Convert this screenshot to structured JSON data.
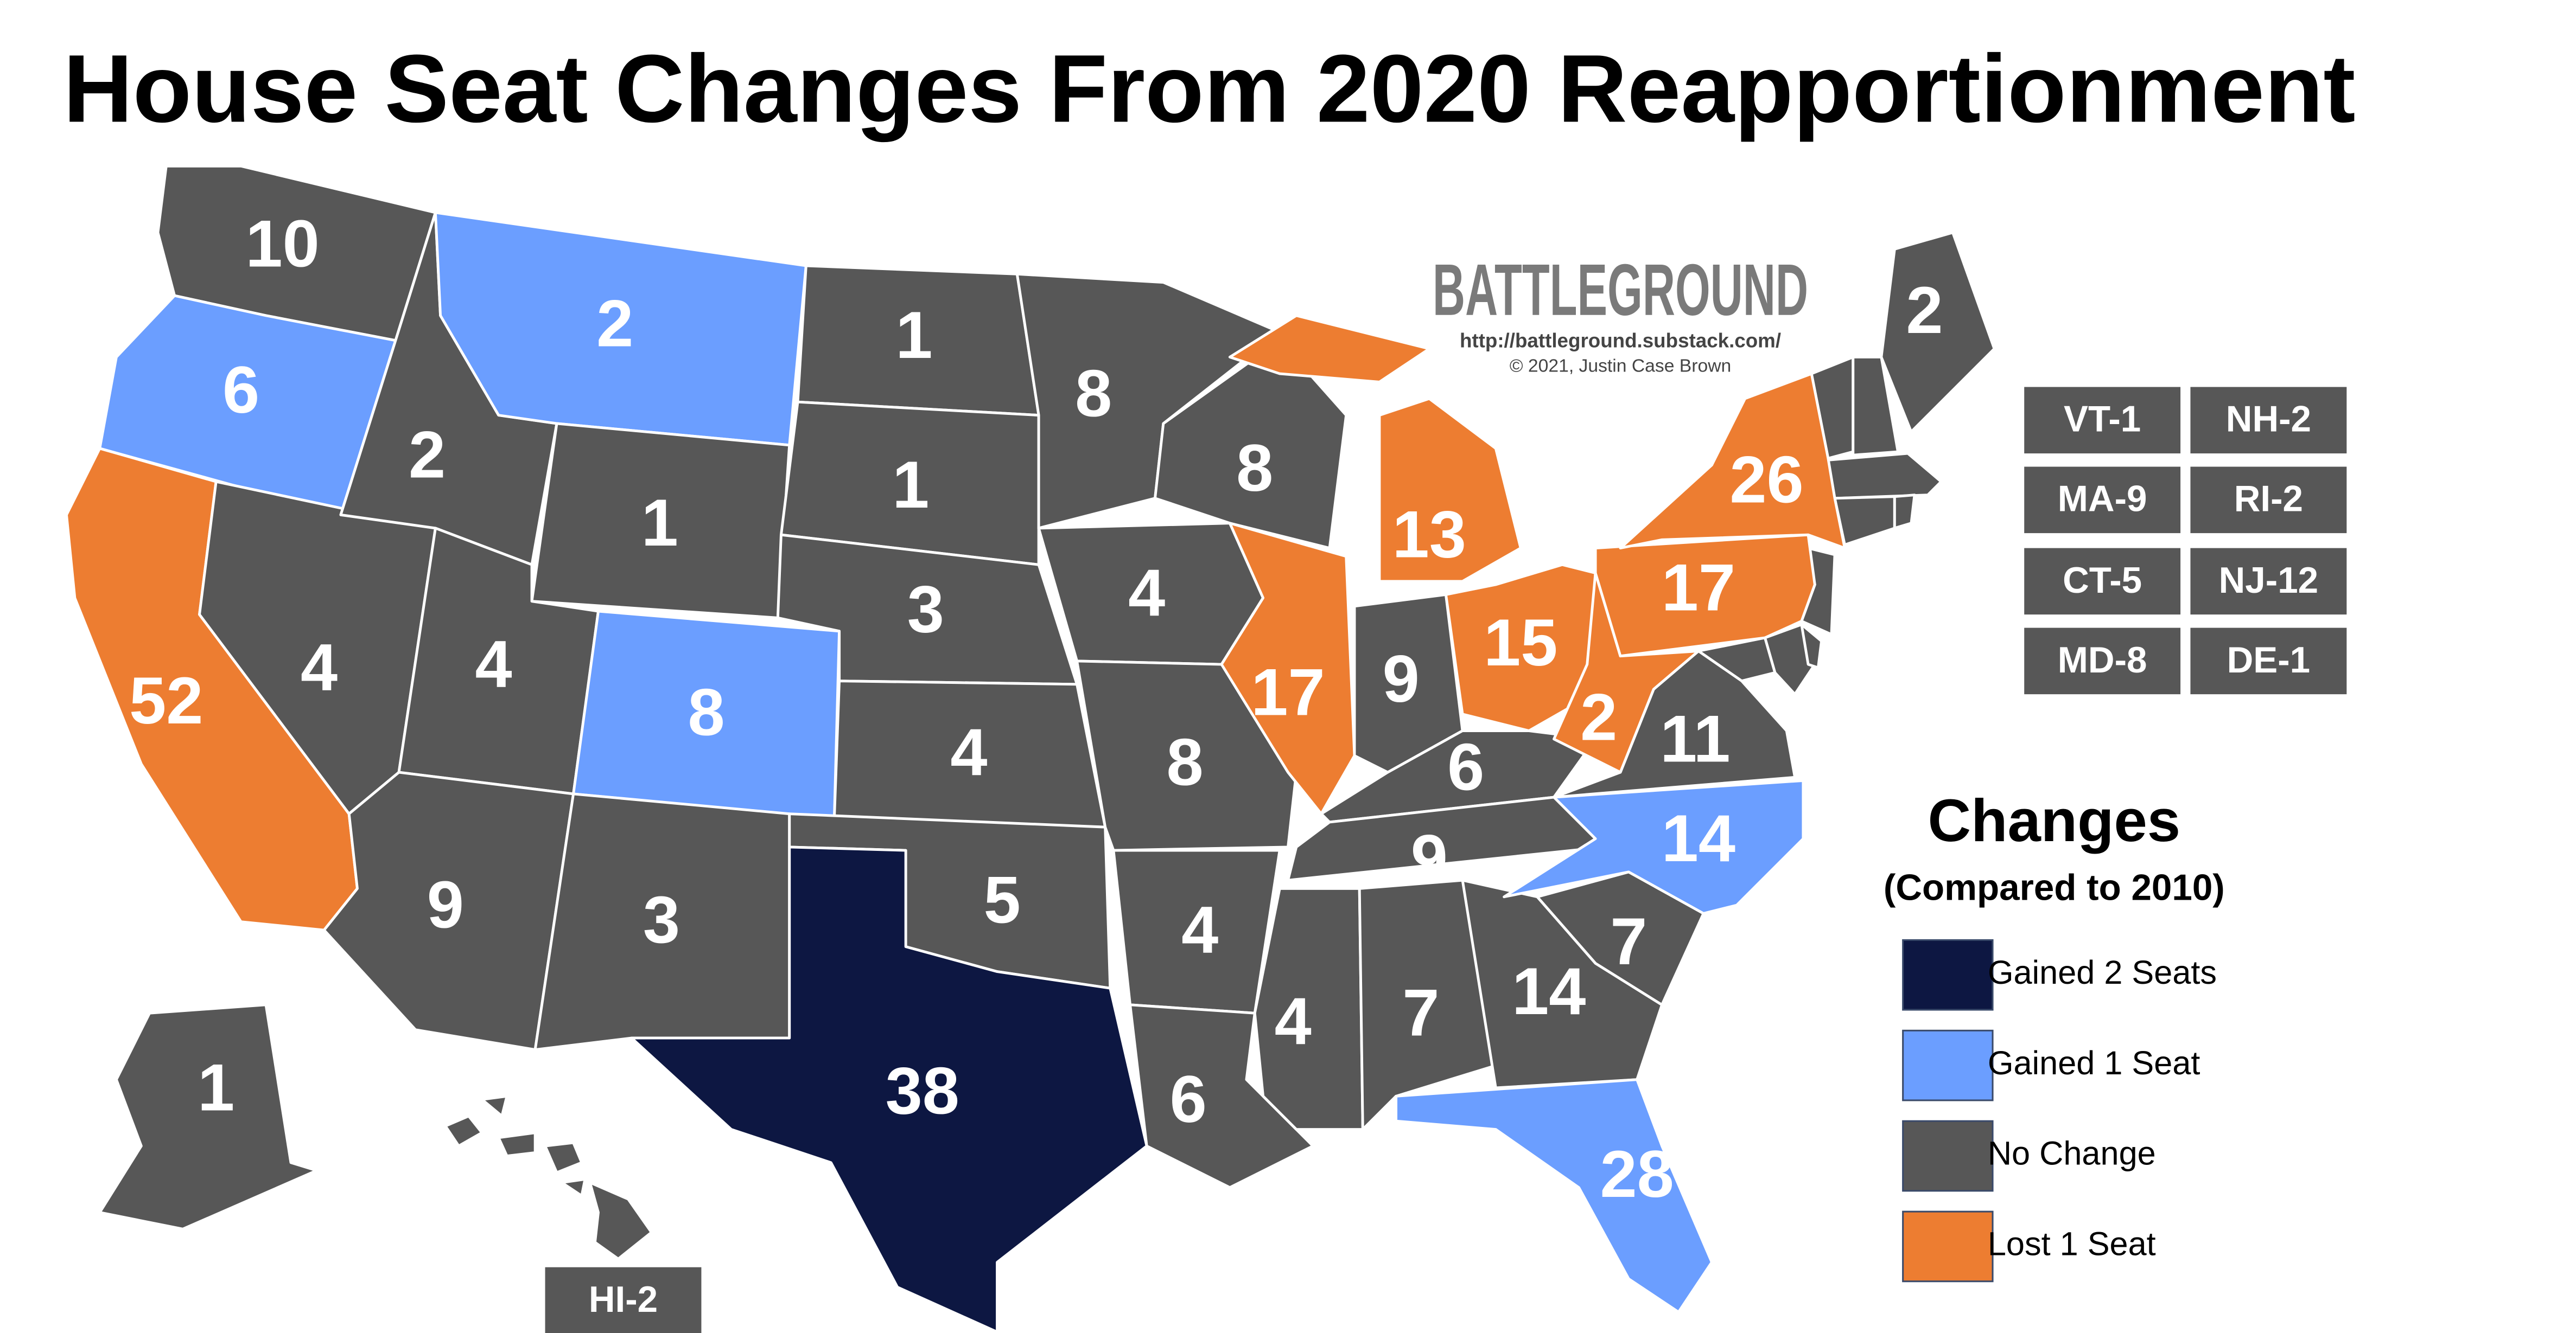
{
  "header": {
    "title": "House Seat Changes From 2020 Reapportionment"
  },
  "credit": {
    "brand": "BATTLEGROUND",
    "url": "http://battleground.substack.com/",
    "copyright": "© 2021, Justin Case Brown"
  },
  "states": [
    {
      "label": "10",
      "color": "#575757"
    },
    {
      "label": "6",
      "color": "#6b9eff"
    },
    {
      "label": "52",
      "color": "#ed7d31"
    },
    {
      "label": "4",
      "color": "#575757"
    },
    {
      "label": "2",
      "color": "#575757"
    },
    {
      "label": "2",
      "color": "#6b9eff"
    },
    {
      "label": "1",
      "color": "#575757"
    },
    {
      "label": "4",
      "color": "#575757"
    },
    {
      "label": "8",
      "color": "#6b9eff"
    },
    {
      "label": "9",
      "color": "#575757"
    },
    {
      "label": "3",
      "color": "#575757"
    },
    {
      "label": "1",
      "color": "#575757"
    },
    {
      "label": "1",
      "color": "#575757"
    },
    {
      "label": "3",
      "color": "#575757"
    },
    {
      "label": "4",
      "color": "#575757"
    },
    {
      "label": "5",
      "color": "#575757"
    },
    {
      "label": "38",
      "color": "#0d1742"
    },
    {
      "label": "8",
      "color": "#575757"
    },
    {
      "label": "4",
      "color": "#575757"
    },
    {
      "label": "8",
      "color": "#575757"
    },
    {
      "label": "4",
      "color": "#575757"
    },
    {
      "label": "6",
      "color": "#575757"
    },
    {
      "label": "8",
      "color": "#575757"
    },
    {
      "label": "17",
      "color": "#ed7d31"
    },
    {
      "label": "13",
      "color": "#ed7d31"
    },
    {
      "label": "9",
      "color": "#575757"
    },
    {
      "label": "15",
      "color": "#ed7d31"
    },
    {
      "label": "6",
      "color": "#575757"
    },
    {
      "label": "9",
      "color": "#575757"
    },
    {
      "label": "4",
      "color": "#575757"
    },
    {
      "label": "7",
      "color": "#575757"
    },
    {
      "label": "14",
      "color": "#575757"
    },
    {
      "label": "28",
      "color": "#6b9eff"
    },
    {
      "label": "7",
      "color": "#575757"
    },
    {
      "label": "14",
      "color": "#6b9eff"
    },
    {
      "label": "11",
      "color": "#575757"
    },
    {
      "label": "2",
      "color": "#ed7d31"
    },
    {
      "label": "17",
      "color": "#ed7d31"
    },
    {
      "label": "26",
      "color": "#ed7d31"
    },
    {
      "label": "2",
      "color": "#575757"
    },
    {
      "label": "1",
      "color": "#575757"
    }
  ],
  "small_states": [
    {
      "label": "VT-1"
    },
    {
      "label": "NH-2"
    },
    {
      "label": "MA-9"
    },
    {
      "label": "RI-2"
    },
    {
      "label": "CT-5"
    },
    {
      "label": "NJ-12"
    },
    {
      "label": "MD-8"
    },
    {
      "label": "DE-1"
    },
    {
      "label": "HI-2"
    }
  ],
  "legend": {
    "title": "Changes",
    "subtitle": "(Compared to 2010)",
    "items": [
      {
        "label": "Gained 2 Seats",
        "color": "#0d1742"
      },
      {
        "label": "Gained 1 Seat",
        "color": "#6b9eff"
      },
      {
        "label": "No Change",
        "color": "#575757"
      },
      {
        "label": "Lost 1 Seat",
        "color": "#ed7d31"
      }
    ]
  }
}
